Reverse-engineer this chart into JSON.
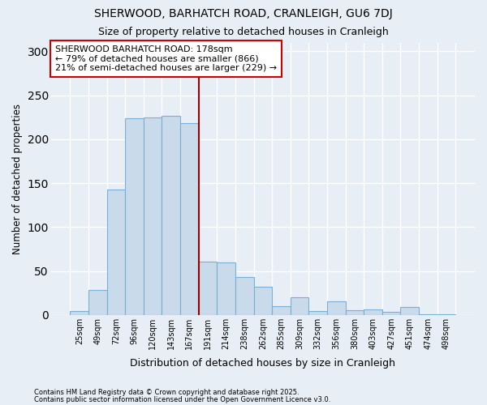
{
  "title1": "SHERWOOD, BARHATCH ROAD, CRANLEIGH, GU6 7DJ",
  "title2": "Size of property relative to detached houses in Cranleigh",
  "xlabel": "Distribution of detached houses by size in Cranleigh",
  "ylabel": "Number of detached properties",
  "categories": [
    "25sqm",
    "49sqm",
    "72sqm",
    "96sqm",
    "120sqm",
    "143sqm",
    "167sqm",
    "191sqm",
    "214sqm",
    "238sqm",
    "262sqm",
    "285sqm",
    "309sqm",
    "332sqm",
    "356sqm",
    "380sqm",
    "403sqm",
    "427sqm",
    "451sqm",
    "474sqm",
    "498sqm"
  ],
  "values": [
    4,
    28,
    143,
    224,
    225,
    227,
    218,
    61,
    60,
    43,
    32,
    10,
    20,
    4,
    15,
    5,
    6,
    3,
    9,
    1,
    1
  ],
  "bar_color": "#c9daea",
  "bar_edge_color": "#7ab0d4",
  "vline_x_index": 6.5,
  "vline_color": "#990000",
  "annotation_title": "SHERWOOD BARHATCH ROAD: 178sqm",
  "annotation_line1": "← 79% of detached houses are smaller (866)",
  "annotation_line2": "21% of semi-detached houses are larger (229) →",
  "annotation_box_facecolor": "#ffffff",
  "annotation_box_edgecolor": "#cc0000",
  "ylim": [
    0,
    310
  ],
  "yticks": [
    0,
    50,
    100,
    150,
    200,
    250,
    300
  ],
  "plot_bg_color": "#e8eef6",
  "fig_bg_color": "#e8eef6",
  "grid_color": "#ffffff",
  "footer1": "Contains HM Land Registry data © Crown copyright and database right 2025.",
  "footer2": "Contains public sector information licensed under the Open Government Licence v3.0."
}
